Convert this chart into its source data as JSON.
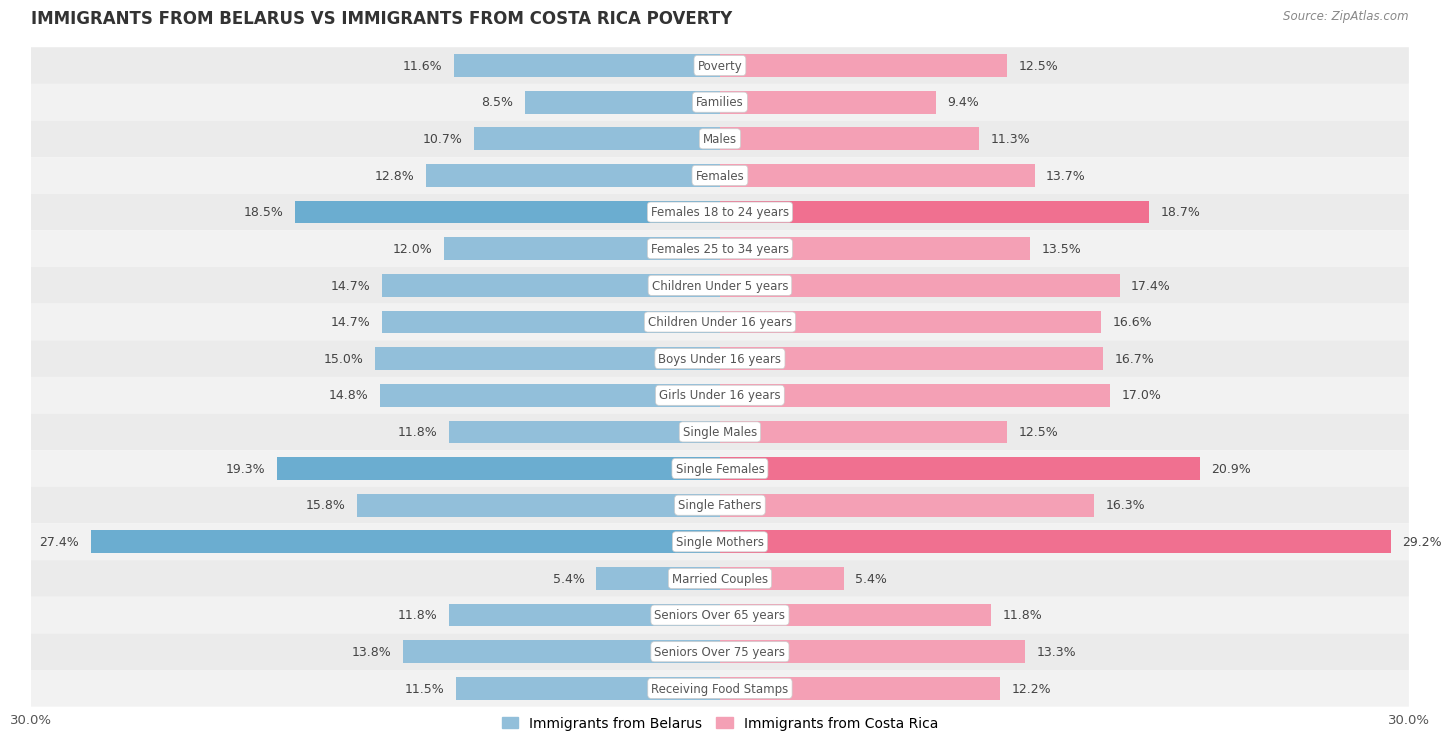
{
  "title": "IMMIGRANTS FROM BELARUS VS IMMIGRANTS FROM COSTA RICA POVERTY",
  "source": "Source: ZipAtlas.com",
  "categories": [
    "Poverty",
    "Families",
    "Males",
    "Females",
    "Females 18 to 24 years",
    "Females 25 to 34 years",
    "Children Under 5 years",
    "Children Under 16 years",
    "Boys Under 16 years",
    "Girls Under 16 years",
    "Single Males",
    "Single Females",
    "Single Fathers",
    "Single Mothers",
    "Married Couples",
    "Seniors Over 65 years",
    "Seniors Over 75 years",
    "Receiving Food Stamps"
  ],
  "belarus_values": [
    11.6,
    8.5,
    10.7,
    12.8,
    18.5,
    12.0,
    14.7,
    14.7,
    15.0,
    14.8,
    11.8,
    19.3,
    15.8,
    27.4,
    5.4,
    11.8,
    13.8,
    11.5
  ],
  "costarica_values": [
    12.5,
    9.4,
    11.3,
    13.7,
    18.7,
    13.5,
    17.4,
    16.6,
    16.7,
    17.0,
    12.5,
    20.9,
    16.3,
    29.2,
    5.4,
    11.8,
    13.3,
    12.2
  ],
  "belarus_color": "#92BFDA",
  "costarica_color": "#F4A0B5",
  "highlight_belarus": [
    4,
    11,
    13
  ],
  "highlight_costarica": [
    4,
    11,
    13
  ],
  "highlight_belarus_color": "#6BADD0",
  "highlight_costarica_color": "#F07090",
  "xlim": 30.0,
  "bar_height": 0.62,
  "bg_color": "#ffffff",
  "legend_label_belarus": "Immigrants from Belarus",
  "legend_label_costarica": "Immigrants from Costa Rica"
}
